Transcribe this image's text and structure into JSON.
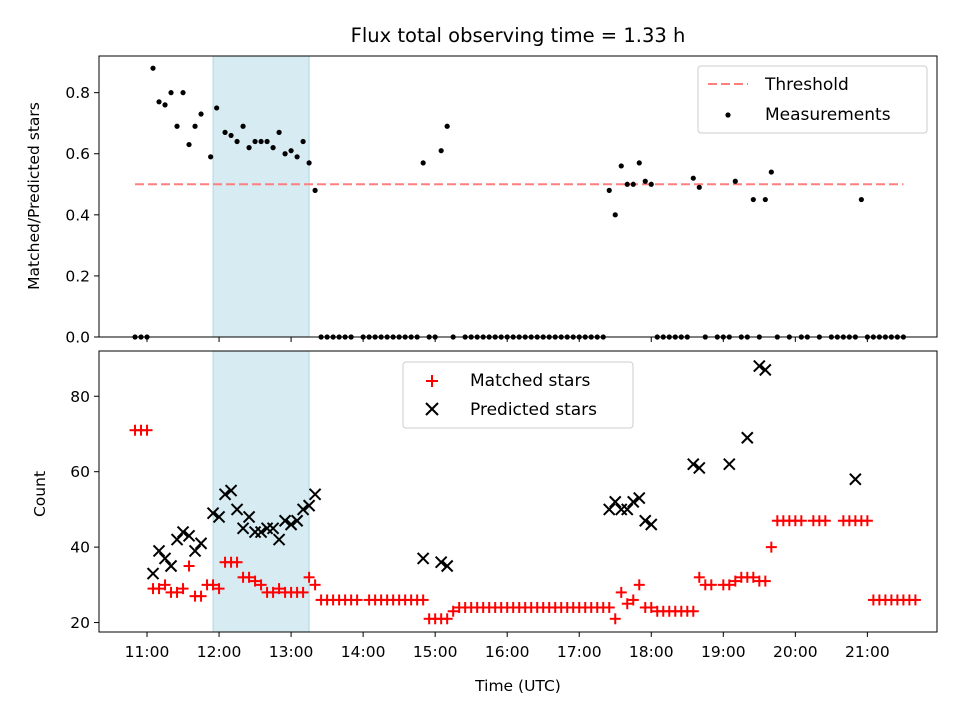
{
  "chart_data": {
    "type": "scatter",
    "title": "Flux total observing time = 1.33 h",
    "shaded_span": {
      "start": "11:55",
      "end": "13:15"
    },
    "xlabel": "Time (UTC)",
    "xlim": [
      "10:20",
      "21:58"
    ],
    "x_ticks": [
      "11:00",
      "12:00",
      "13:00",
      "14:00",
      "15:00",
      "16:00",
      "17:00",
      "18:00",
      "19:00",
      "20:00",
      "21:00"
    ],
    "colors": {
      "threshold": "#ff7f7f",
      "measurements": "#000000",
      "matched": "#ff0000",
      "predicted": "#000000",
      "span": "#add8e6"
    },
    "top": {
      "ylabel": "Matched/Predicted stars",
      "ylim": [
        0,
        0.92
      ],
      "y_ticks": [
        "0.0",
        "0.2",
        "0.4",
        "0.6",
        "0.8"
      ],
      "threshold": {
        "value": 0.5,
        "x_range": [
          "10:50",
          "21:30"
        ]
      },
      "legend": {
        "position": "top-right",
        "items": [
          "Threshold",
          "Measurements"
        ]
      },
      "measurements": [
        [
          "10:50",
          0
        ],
        [
          "10:55",
          0
        ],
        [
          "11:00",
          0
        ],
        [
          "11:05",
          0.88
        ],
        [
          "11:10",
          0.77
        ],
        [
          "11:15",
          0.76
        ],
        [
          "11:20",
          0.8
        ],
        [
          "11:25",
          0.69
        ],
        [
          "11:30",
          0.8
        ],
        [
          "11:35",
          0.63
        ],
        [
          "11:40",
          0.69
        ],
        [
          "11:45",
          0.73
        ],
        [
          "11:53",
          0.59
        ],
        [
          "11:58",
          0.75
        ],
        [
          "12:05",
          0.67
        ],
        [
          "12:10",
          0.66
        ],
        [
          "12:15",
          0.64
        ],
        [
          "12:20",
          0.69
        ],
        [
          "12:25",
          0.62
        ],
        [
          "12:30",
          0.64
        ],
        [
          "12:35",
          0.64
        ],
        [
          "12:40",
          0.64
        ],
        [
          "12:45",
          0.62
        ],
        [
          "12:50",
          0.67
        ],
        [
          "12:55",
          0.6
        ],
        [
          "13:00",
          0.61
        ],
        [
          "13:05",
          0.59
        ],
        [
          "13:10",
          0.64
        ],
        [
          "13:15",
          0.57
        ],
        [
          "13:20",
          0.48
        ],
        [
          "13:25",
          0
        ],
        [
          "13:30",
          0
        ],
        [
          "13:35",
          0
        ],
        [
          "13:40",
          0
        ],
        [
          "13:45",
          0
        ],
        [
          "13:50",
          0
        ],
        [
          "14:00",
          0
        ],
        [
          "14:05",
          0
        ],
        [
          "14:10",
          0
        ],
        [
          "14:15",
          0
        ],
        [
          "14:20",
          0
        ],
        [
          "14:25",
          0
        ],
        [
          "14:30",
          0
        ],
        [
          "14:35",
          0
        ],
        [
          "14:40",
          0
        ],
        [
          "14:45",
          0
        ],
        [
          "14:50",
          0.57
        ],
        [
          "14:55",
          0
        ],
        [
          "15:00",
          0
        ],
        [
          "15:05",
          0.61
        ],
        [
          "15:10",
          0.69
        ],
        [
          "15:15",
          0
        ],
        [
          "15:25",
          0
        ],
        [
          "15:30",
          0
        ],
        [
          "15:35",
          0
        ],
        [
          "15:40",
          0
        ],
        [
          "15:45",
          0
        ],
        [
          "15:50",
          0
        ],
        [
          "15:55",
          0
        ],
        [
          "16:00",
          0
        ],
        [
          "16:05",
          0
        ],
        [
          "16:10",
          0
        ],
        [
          "16:15",
          0
        ],
        [
          "16:20",
          0
        ],
        [
          "16:25",
          0
        ],
        [
          "16:30",
          0
        ],
        [
          "16:35",
          0
        ],
        [
          "16:40",
          0
        ],
        [
          "16:45",
          0
        ],
        [
          "16:50",
          0
        ],
        [
          "16:55",
          0
        ],
        [
          "17:00",
          0
        ],
        [
          "17:05",
          0
        ],
        [
          "17:10",
          0
        ],
        [
          "17:15",
          0
        ],
        [
          "17:20",
          0
        ],
        [
          "17:25",
          0.48
        ],
        [
          "17:30",
          0.4
        ],
        [
          "17:35",
          0.56
        ],
        [
          "17:40",
          0.5
        ],
        [
          "17:45",
          0.5
        ],
        [
          "17:50",
          0.57
        ],
        [
          "17:55",
          0.51
        ],
        [
          "18:00",
          0.5
        ],
        [
          "18:05",
          0
        ],
        [
          "18:10",
          0
        ],
        [
          "18:15",
          0
        ],
        [
          "18:20",
          0
        ],
        [
          "18:25",
          0
        ],
        [
          "18:30",
          0
        ],
        [
          "18:35",
          0.52
        ],
        [
          "18:40",
          0.49
        ],
        [
          "18:45",
          0
        ],
        [
          "18:55",
          0
        ],
        [
          "19:00",
          0
        ],
        [
          "19:05",
          0
        ],
        [
          "19:10",
          0.51
        ],
        [
          "19:15",
          0
        ],
        [
          "19:20",
          0
        ],
        [
          "19:25",
          0.45
        ],
        [
          "19:30",
          0
        ],
        [
          "19:35",
          0.45
        ],
        [
          "19:40",
          0.54
        ],
        [
          "19:45",
          0
        ],
        [
          "19:55",
          0
        ],
        [
          "20:05",
          0
        ],
        [
          "20:10",
          0
        ],
        [
          "20:20",
          0
        ],
        [
          "20:30",
          0
        ],
        [
          "20:35",
          0
        ],
        [
          "20:40",
          0
        ],
        [
          "20:45",
          0
        ],
        [
          "20:50",
          0
        ],
        [
          "20:55",
          0.45
        ],
        [
          "21:00",
          0
        ],
        [
          "21:05",
          0
        ],
        [
          "21:10",
          0
        ],
        [
          "21:15",
          0
        ],
        [
          "21:20",
          0
        ],
        [
          "21:25",
          0
        ],
        [
          "21:30",
          0
        ]
      ]
    },
    "bottom": {
      "ylabel": "Count",
      "ylim": [
        17.5,
        92
      ],
      "y_ticks": [
        "20",
        "40",
        "60",
        "80"
      ],
      "legend": {
        "position": "upper-center",
        "items": [
          "Matched stars",
          "Predicted stars"
        ]
      },
      "matched": [
        [
          "10:50",
          71
        ],
        [
          "10:55",
          71
        ],
        [
          "11:00",
          71
        ],
        [
          "11:05",
          29
        ],
        [
          "11:10",
          29
        ],
        [
          "11:15",
          30
        ],
        [
          "11:20",
          28
        ],
        [
          "11:25",
          28
        ],
        [
          "11:30",
          29
        ],
        [
          "11:35",
          35
        ],
        [
          "11:40",
          27
        ],
        [
          "11:45",
          27
        ],
        [
          "11:50",
          30
        ],
        [
          "11:55",
          30
        ],
        [
          "12:00",
          29
        ],
        [
          "12:05",
          36
        ],
        [
          "12:10",
          36
        ],
        [
          "12:15",
          36
        ],
        [
          "12:20",
          32
        ],
        [
          "12:25",
          32
        ],
        [
          "12:30",
          31
        ],
        [
          "12:35",
          30
        ],
        [
          "12:40",
          28
        ],
        [
          "12:45",
          28
        ],
        [
          "12:50",
          29
        ],
        [
          "12:55",
          28
        ],
        [
          "13:00",
          28
        ],
        [
          "13:05",
          28
        ],
        [
          "13:10",
          28
        ],
        [
          "13:15",
          32
        ],
        [
          "13:20",
          30
        ],
        [
          "13:25",
          26
        ],
        [
          "13:30",
          26
        ],
        [
          "13:35",
          26
        ],
        [
          "13:40",
          26
        ],
        [
          "13:45",
          26
        ],
        [
          "13:50",
          26
        ],
        [
          "13:55",
          26
        ],
        [
          "14:05",
          26
        ],
        [
          "14:10",
          26
        ],
        [
          "14:15",
          26
        ],
        [
          "14:20",
          26
        ],
        [
          "14:25",
          26
        ],
        [
          "14:30",
          26
        ],
        [
          "14:35",
          26
        ],
        [
          "14:40",
          26
        ],
        [
          "14:45",
          26
        ],
        [
          "14:50",
          26
        ],
        [
          "14:55",
          21
        ],
        [
          "15:00",
          21
        ],
        [
          "15:05",
          21
        ],
        [
          "15:10",
          21
        ],
        [
          "15:15",
          23
        ],
        [
          "15:20",
          24
        ],
        [
          "15:25",
          24
        ],
        [
          "15:30",
          24
        ],
        [
          "15:35",
          24
        ],
        [
          "15:40",
          24
        ],
        [
          "15:45",
          24
        ],
        [
          "15:50",
          24
        ],
        [
          "15:55",
          24
        ],
        [
          "16:00",
          24
        ],
        [
          "16:05",
          24
        ],
        [
          "16:10",
          24
        ],
        [
          "16:15",
          24
        ],
        [
          "16:20",
          24
        ],
        [
          "16:25",
          24
        ],
        [
          "16:30",
          24
        ],
        [
          "16:35",
          24
        ],
        [
          "16:40",
          24
        ],
        [
          "16:45",
          24
        ],
        [
          "16:50",
          24
        ],
        [
          "16:55",
          24
        ],
        [
          "17:00",
          24
        ],
        [
          "17:05",
          24
        ],
        [
          "17:10",
          24
        ],
        [
          "17:15",
          24
        ],
        [
          "17:20",
          24
        ],
        [
          "17:25",
          24
        ],
        [
          "17:30",
          21
        ],
        [
          "17:35",
          28
        ],
        [
          "17:40",
          25
        ],
        [
          "17:45",
          26
        ],
        [
          "17:50",
          30
        ],
        [
          "17:55",
          24
        ],
        [
          "18:00",
          24
        ],
        [
          "18:05",
          23
        ],
        [
          "18:10",
          23
        ],
        [
          "18:15",
          23
        ],
        [
          "18:20",
          23
        ],
        [
          "18:25",
          23
        ],
        [
          "18:30",
          23
        ],
        [
          "18:35",
          23
        ],
        [
          "18:40",
          32
        ],
        [
          "18:45",
          30
        ],
        [
          "18:50",
          30
        ],
        [
          "19:00",
          30
        ],
        [
          "19:05",
          30
        ],
        [
          "19:10",
          31
        ],
        [
          "19:15",
          32
        ],
        [
          "19:20",
          32
        ],
        [
          "19:25",
          32
        ],
        [
          "19:30",
          31
        ],
        [
          "19:35",
          31
        ],
        [
          "19:40",
          40
        ],
        [
          "19:45",
          47
        ],
        [
          "19:50",
          47
        ],
        [
          "19:55",
          47
        ],
        [
          "20:00",
          47
        ],
        [
          "20:05",
          47
        ],
        [
          "20:15",
          47
        ],
        [
          "20:20",
          47
        ],
        [
          "20:25",
          47
        ],
        [
          "20:40",
          47
        ],
        [
          "20:45",
          47
        ],
        [
          "20:50",
          47
        ],
        [
          "20:55",
          47
        ],
        [
          "21:00",
          47
        ],
        [
          "21:05",
          26
        ],
        [
          "21:10",
          26
        ],
        [
          "21:15",
          26
        ],
        [
          "21:20",
          26
        ],
        [
          "21:25",
          26
        ],
        [
          "21:30",
          26
        ],
        [
          "21:35",
          26
        ],
        [
          "21:40",
          26
        ]
      ],
      "predicted": [
        [
          "11:05",
          33
        ],
        [
          "11:10",
          39
        ],
        [
          "11:15",
          37
        ],
        [
          "11:20",
          35
        ],
        [
          "11:25",
          42
        ],
        [
          "11:30",
          44
        ],
        [
          "11:35",
          43
        ],
        [
          "11:40",
          39
        ],
        [
          "11:45",
          41
        ],
        [
          "11:55",
          49
        ],
        [
          "12:00",
          48
        ],
        [
          "12:05",
          54
        ],
        [
          "12:10",
          55
        ],
        [
          "12:15",
          50
        ],
        [
          "12:20",
          45
        ],
        [
          "12:25",
          48
        ],
        [
          "12:30",
          44
        ],
        [
          "12:35",
          44
        ],
        [
          "12:40",
          45
        ],
        [
          "12:45",
          45
        ],
        [
          "12:50",
          42
        ],
        [
          "12:55",
          47
        ],
        [
          "13:00",
          46
        ],
        [
          "13:05",
          47
        ],
        [
          "13:10",
          50
        ],
        [
          "13:15",
          51
        ],
        [
          "13:20",
          54
        ],
        [
          "14:50",
          37
        ],
        [
          "15:05",
          36
        ],
        [
          "15:10",
          35
        ],
        [
          "17:25",
          50
        ],
        [
          "17:30",
          52
        ],
        [
          "17:35",
          50
        ],
        [
          "17:40",
          50
        ],
        [
          "17:45",
          52
        ],
        [
          "17:50",
          53
        ],
        [
          "17:55",
          47
        ],
        [
          "18:00",
          46
        ],
        [
          "18:35",
          62
        ],
        [
          "18:40",
          61
        ],
        [
          "19:05",
          62
        ],
        [
          "19:20",
          69
        ],
        [
          "19:30",
          88
        ],
        [
          "19:35",
          87
        ],
        [
          "20:50",
          58
        ]
      ]
    }
  }
}
